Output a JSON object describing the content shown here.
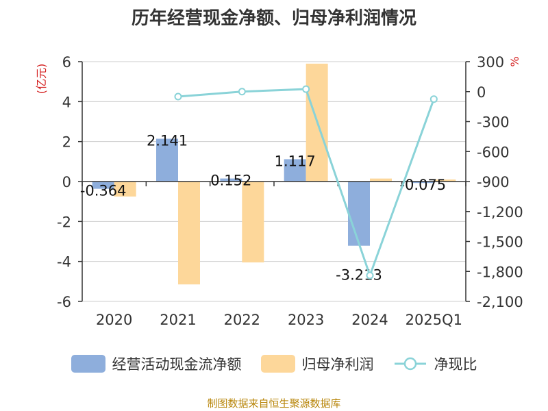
{
  "chart_data": {
    "type": "bar",
    "title": "历年经营现金净额、归母净利润情况",
    "categories": [
      "2020",
      "2021",
      "2022",
      "2023",
      "2024",
      "2025Q1"
    ],
    "y_left": {
      "label": "(亿元)",
      "ylim": [
        -6,
        6
      ],
      "ticks": [
        "6",
        "4",
        "2",
        "0",
        "-2",
        "-4",
        "-6"
      ]
    },
    "y_right": {
      "label": "%",
      "ylim": [
        -2100,
        300
      ],
      "ticks": [
        "300",
        "0",
        "-300",
        "-600",
        "-900",
        "-1,200",
        "-1,500",
        "-1,800",
        "-2,100"
      ]
    },
    "series": [
      {
        "name": "经营活动现金流净额",
        "type": "bar",
        "axis": "left",
        "color": "#8eaedc",
        "values": [
          -0.364,
          2.141,
          0.152,
          1.117,
          -3.213,
          -0.075
        ],
        "labels": [
          "-0.364",
          "2.141",
          "0.152",
          "1.117",
          "-3.213",
          "-0.075"
        ]
      },
      {
        "name": "归母净利润",
        "type": "bar",
        "axis": "left",
        "color": "#fdd79a",
        "values": [
          -0.75,
          -5.15,
          -4.05,
          5.9,
          0.15,
          0.1
        ]
      },
      {
        "name": "净现比",
        "type": "line",
        "axis": "right",
        "color": "#8ad3d8",
        "values": [
          null,
          -50,
          0,
          25,
          -1840,
          -75
        ]
      }
    ],
    "grid": true,
    "legend_position": "bottom"
  },
  "footer": "制图数据来自恒生聚源数据库"
}
